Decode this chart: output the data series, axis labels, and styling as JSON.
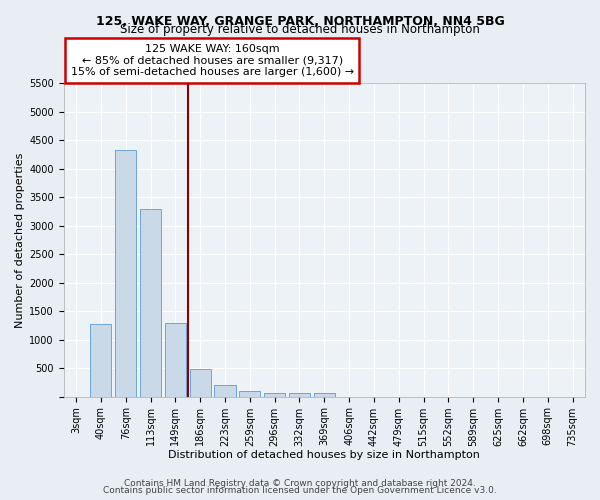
{
  "title_line1": "125, WAKE WAY, GRANGE PARK, NORTHAMPTON, NN4 5BG",
  "title_line2": "Size of property relative to detached houses in Northampton",
  "xlabel": "Distribution of detached houses by size in Northampton",
  "ylabel": "Number of detached properties",
  "categories": [
    "3sqm",
    "40sqm",
    "76sqm",
    "113sqm",
    "149sqm",
    "186sqm",
    "223sqm",
    "259sqm",
    "296sqm",
    "332sqm",
    "369sqm",
    "406sqm",
    "442sqm",
    "479sqm",
    "515sqm",
    "552sqm",
    "589sqm",
    "625sqm",
    "662sqm",
    "698sqm",
    "735sqm"
  ],
  "values": [
    0,
    1270,
    4330,
    3300,
    1290,
    480,
    210,
    90,
    70,
    55,
    60,
    0,
    0,
    0,
    0,
    0,
    0,
    0,
    0,
    0,
    0
  ],
  "bar_color": "#c9d9e8",
  "bar_edgecolor": "#5b9bd5",
  "vline_x_index": 4.5,
  "vline_color": "#8b0000",
  "annotation_text": "125 WAKE WAY: 160sqm\n← 85% of detached houses are smaller (9,317)\n15% of semi-detached houses are larger (1,600) →",
  "annotation_box_color": "white",
  "annotation_box_edgecolor": "#cc0000",
  "ylim": [
    0,
    5500
  ],
  "yticks": [
    0,
    500,
    1000,
    1500,
    2000,
    2500,
    3000,
    3500,
    4000,
    4500,
    5000,
    5500
  ],
  "footnote1": "Contains HM Land Registry data © Crown copyright and database right 2024.",
  "footnote2": "Contains public sector information licensed under the Open Government Licence v3.0.",
  "bg_color": "#e8eef4",
  "plot_bg_color": "#edf2f7",
  "title_fontsize": 9,
  "subtitle_fontsize": 8.5,
  "axis_label_fontsize": 8,
  "tick_fontsize": 7,
  "annotation_fontsize": 8,
  "footnote_fontsize": 6.5
}
